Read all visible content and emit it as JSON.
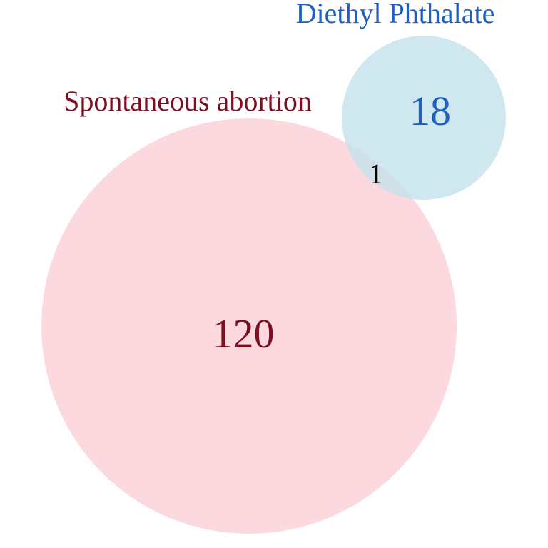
{
  "sets": [
    {
      "label": "Spontaneous abortion",
      "only_count": "120",
      "fill_color": "#fbd0d8",
      "text_color": "#7a1020"
    },
    {
      "label": "Diethyl Phthalate",
      "only_count": "18",
      "fill_color": "#c4e2ec",
      "text_color": "#1f5fbf"
    }
  ],
  "intersection": {
    "count": "1",
    "text_color": "#000000"
  }
}
